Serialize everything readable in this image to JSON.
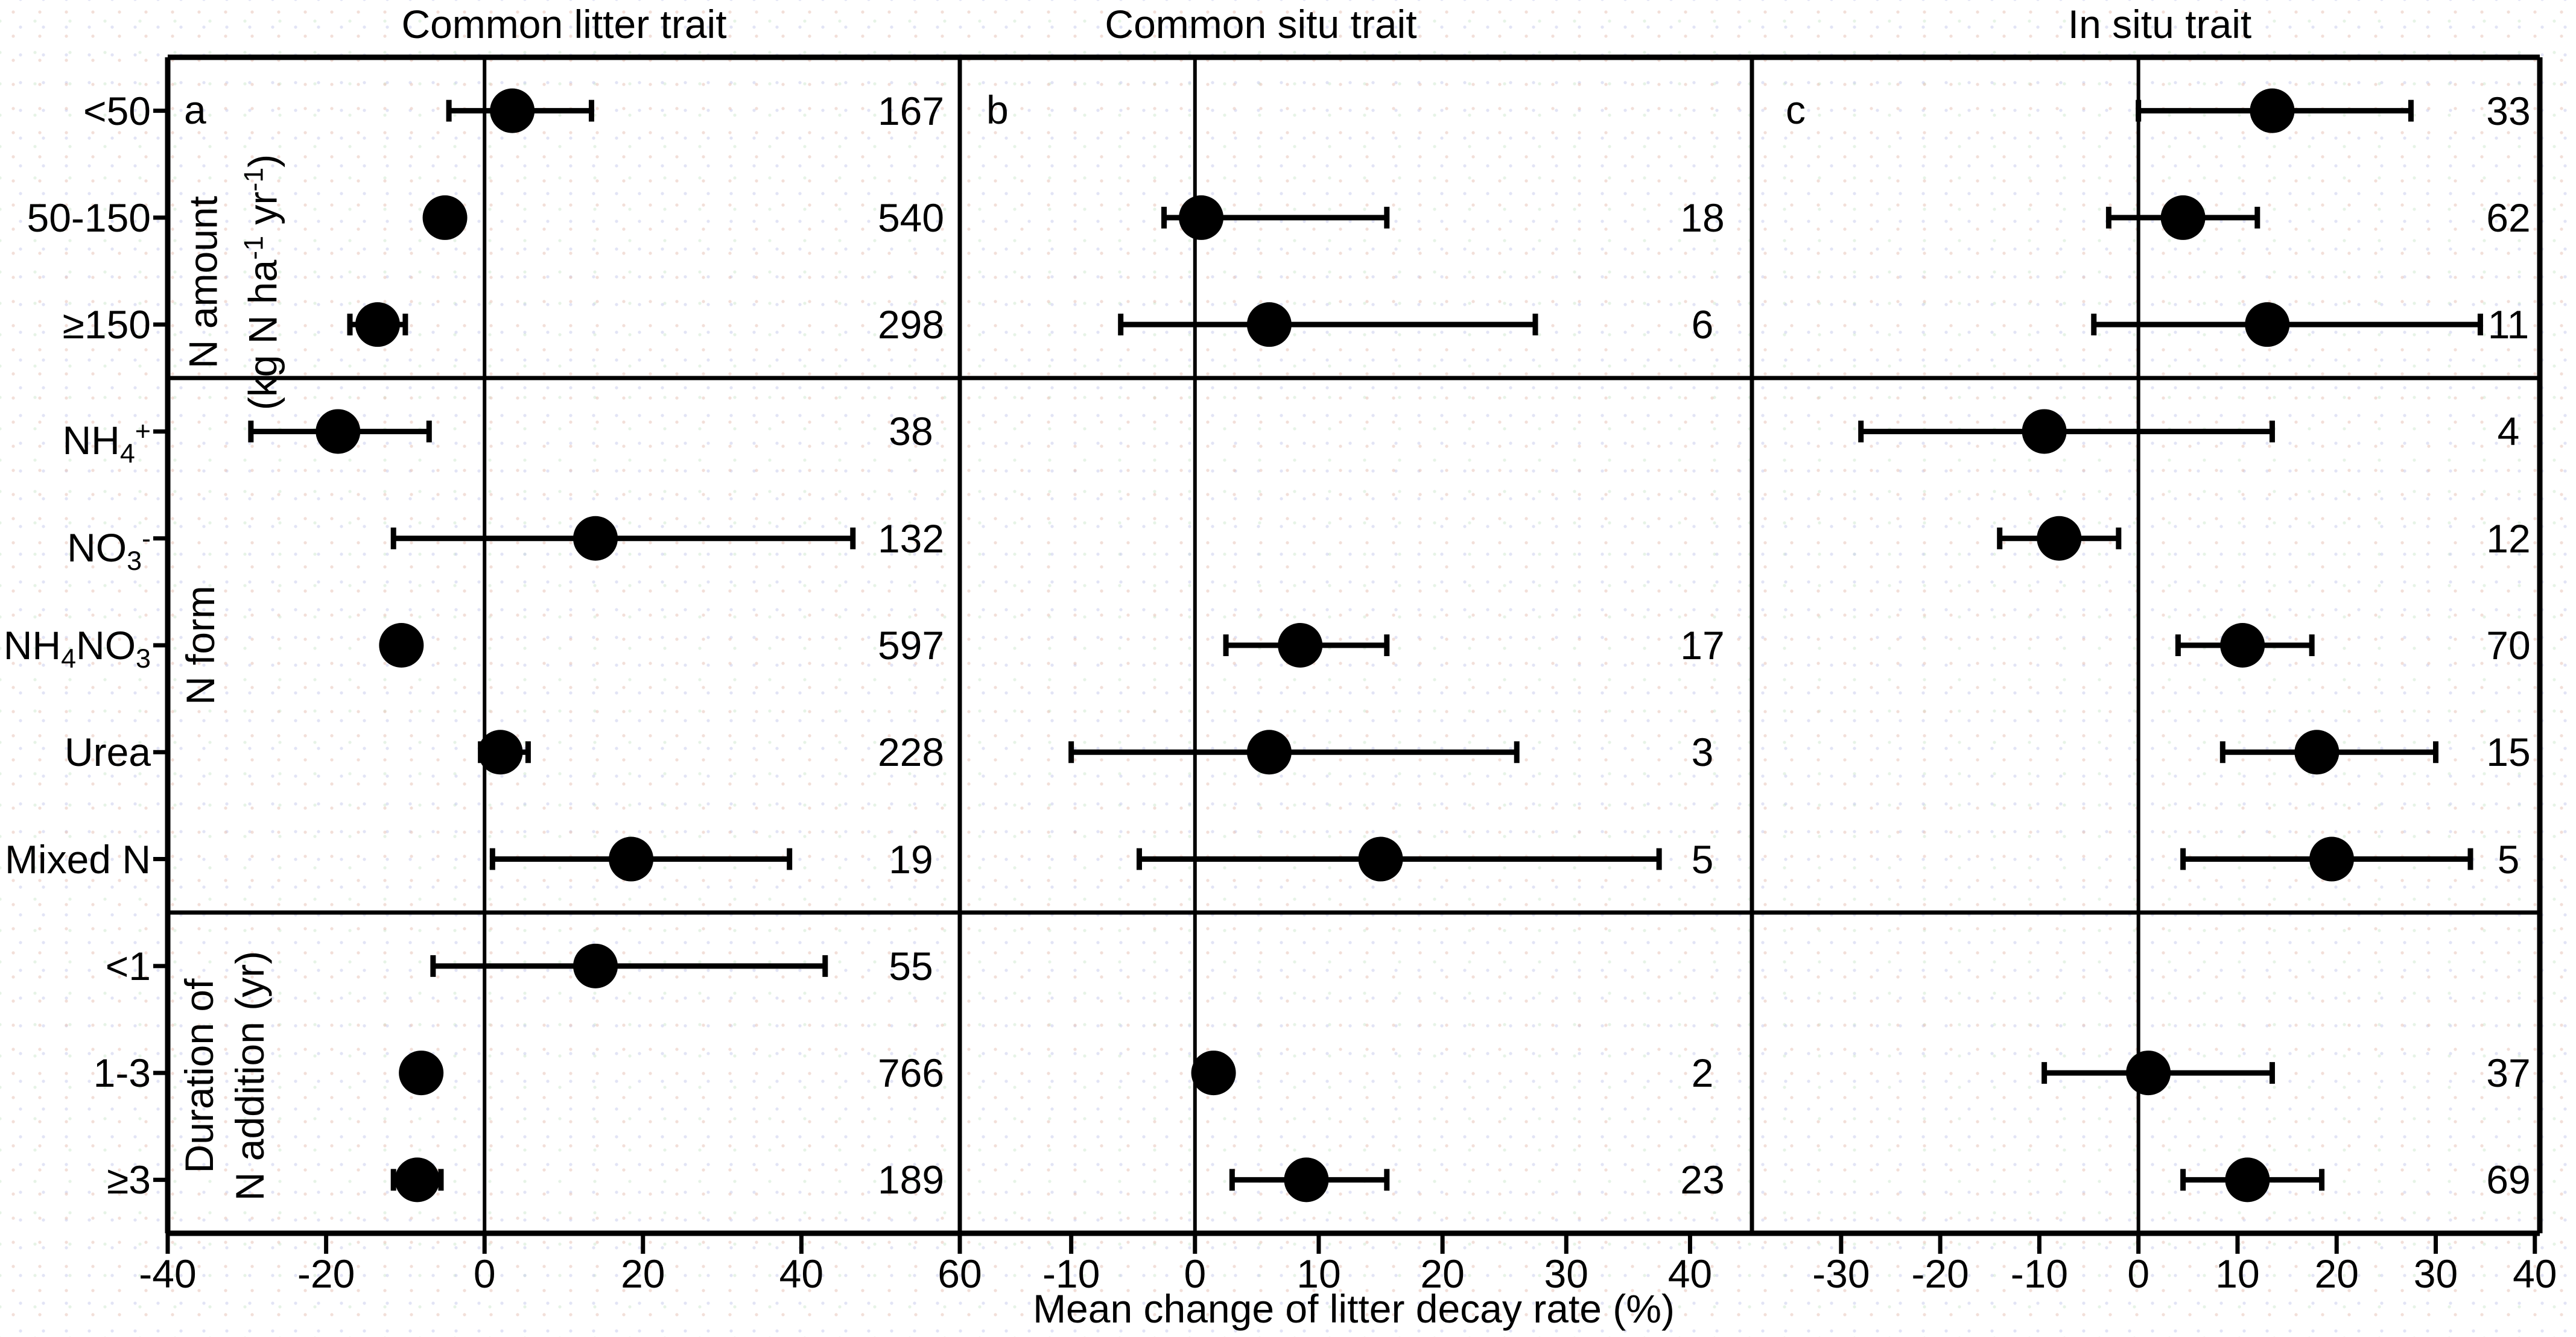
{
  "figure": {
    "ink_color": "#000000",
    "background_color": "#ffffff"
  },
  "chart_data": {
    "type": "scatter",
    "subtype": "forest-plot-dots-with-error-bars",
    "xlabel": "Mean change of litter decay rate (%)",
    "grid": "off",
    "legend": "none",
    "rows": [
      {
        "id": 0,
        "label": [
          {
            "t": "<50"
          }
        ]
      },
      {
        "id": 1,
        "label": [
          {
            "t": "50-150"
          }
        ]
      },
      {
        "id": 2,
        "label": [
          {
            "t": "≥150"
          }
        ]
      },
      {
        "id": 3,
        "label": [
          {
            "t": "NH"
          },
          {
            "sub": "4"
          },
          {
            "sup": "+"
          }
        ]
      },
      {
        "id": 4,
        "label": [
          {
            "t": "NO"
          },
          {
            "sub": "3"
          },
          {
            "sup": "-"
          }
        ]
      },
      {
        "id": 5,
        "label": [
          {
            "t": "NH"
          },
          {
            "sub": "4"
          },
          {
            "t": "NO"
          },
          {
            "sub": "3"
          }
        ]
      },
      {
        "id": 6,
        "label": [
          {
            "t": "Urea"
          }
        ]
      },
      {
        "id": 7,
        "label": [
          {
            "t": "Mixed N"
          }
        ]
      },
      {
        "id": 8,
        "label": [
          {
            "t": "<1"
          }
        ]
      },
      {
        "id": 9,
        "label": [
          {
            "t": "1-3"
          }
        ]
      },
      {
        "id": 10,
        "label": [
          {
            "t": "≥3"
          }
        ]
      }
    ],
    "row_groups": [
      {
        "rows": [
          0,
          1,
          2
        ],
        "label_lines": [
          [
            {
              "t": "N amount"
            }
          ],
          [
            {
              "t": "(kg N ha"
            },
            {
              "sup": "-1"
            },
            {
              "t": " yr"
            },
            {
              "sup": "-1"
            },
            {
              "t": ")"
            }
          ]
        ]
      },
      {
        "rows": [
          3,
          4,
          5,
          6,
          7
        ],
        "label_lines": [
          [
            {
              "t": "N form"
            }
          ]
        ]
      },
      {
        "rows": [
          8,
          9,
          10
        ],
        "label_lines": [
          [
            {
              "t": "Duration of"
            }
          ],
          [
            {
              "t": "N addition (yr)"
            }
          ]
        ]
      }
    ],
    "panels": [
      {
        "letter": "a",
        "title": "Common litter trait",
        "xlim": [
          -40,
          60
        ],
        "xticks": [
          -40,
          -20,
          0,
          20,
          40,
          60
        ],
        "points": [
          {
            "row": 0,
            "mean": 3.5,
            "lo": -4.5,
            "hi": 13.5,
            "n": 167
          },
          {
            "row": 1,
            "mean": -5,
            "lo": -7,
            "hi": -3,
            "n": 540
          },
          {
            "row": 2,
            "mean": -13.5,
            "lo": -17,
            "hi": -10,
            "n": 298
          },
          {
            "row": 3,
            "mean": -18.5,
            "lo": -29.5,
            "hi": -7,
            "n": 38
          },
          {
            "row": 4,
            "mean": 14,
            "lo": -11.5,
            "hi": 46.5,
            "n": 132
          },
          {
            "row": 5,
            "mean": -10.5,
            "lo": -12.5,
            "hi": -8.5,
            "n": 597
          },
          {
            "row": 6,
            "mean": 2,
            "lo": -0.5,
            "hi": 5.5,
            "n": 228
          },
          {
            "row": 7,
            "mean": 18.5,
            "lo": 1,
            "hi": 38.5,
            "n": 19
          },
          {
            "row": 8,
            "mean": 14,
            "lo": -6.5,
            "hi": 43,
            "n": 55
          },
          {
            "row": 9,
            "mean": -8,
            "lo": -9.5,
            "hi": -6.5,
            "n": 766
          },
          {
            "row": 10,
            "mean": -8.5,
            "lo": -11.5,
            "hi": -5.5,
            "n": 189
          }
        ]
      },
      {
        "letter": "b",
        "title": "Common situ trait",
        "xlim": [
          -19,
          45
        ],
        "xticks": [
          -10,
          0,
          10,
          20,
          30,
          40
        ],
        "points": [
          {
            "row": 1,
            "mean": 0.5,
            "lo": -2.5,
            "hi": 15.5,
            "n": 18
          },
          {
            "row": 2,
            "mean": 6,
            "lo": -6,
            "hi": 27.5,
            "n": 6
          },
          {
            "row": 5,
            "mean": 8.5,
            "lo": 2.5,
            "hi": 15.5,
            "n": 17
          },
          {
            "row": 6,
            "mean": 6,
            "lo": -10,
            "hi": 26,
            "n": 3
          },
          {
            "row": 7,
            "mean": 15,
            "lo": -4.5,
            "hi": 37.5,
            "n": 5
          },
          {
            "row": 9,
            "mean": 1.5,
            "lo": 0.5,
            "hi": 2.5,
            "n": 2
          },
          {
            "row": 10,
            "mean": 9,
            "lo": 3,
            "hi": 15.5,
            "n": 23
          }
        ]
      },
      {
        "letter": "c",
        "title": "In situ trait",
        "xlim": [
          -39,
          40.5
        ],
        "xticks": [
          -30,
          -20,
          -10,
          0,
          10,
          20,
          30,
          40
        ],
        "points": [
          {
            "row": 0,
            "mean": 13.5,
            "lo": 0,
            "hi": 27.5,
            "n": 33
          },
          {
            "row": 1,
            "mean": 4.5,
            "lo": -3,
            "hi": 12,
            "n": 62
          },
          {
            "row": 2,
            "mean": 13,
            "lo": -4.5,
            "hi": 34.5,
            "n": 11
          },
          {
            "row": 3,
            "mean": -9.5,
            "lo": -28,
            "hi": 13.5,
            "n": 4
          },
          {
            "row": 4,
            "mean": -8,
            "lo": -14,
            "hi": -2,
            "n": 12
          },
          {
            "row": 5,
            "mean": 10.5,
            "lo": 4,
            "hi": 17.5,
            "n": 70
          },
          {
            "row": 6,
            "mean": 18,
            "lo": 8.5,
            "hi": 30,
            "n": 15
          },
          {
            "row": 7,
            "mean": 19.5,
            "lo": 4.5,
            "hi": 33.5,
            "n": 5
          },
          {
            "row": 9,
            "mean": 1,
            "lo": -9.5,
            "hi": 13.5,
            "n": 37
          },
          {
            "row": 10,
            "mean": 11,
            "lo": 4.5,
            "hi": 18.5,
            "n": 69
          }
        ]
      }
    ]
  }
}
